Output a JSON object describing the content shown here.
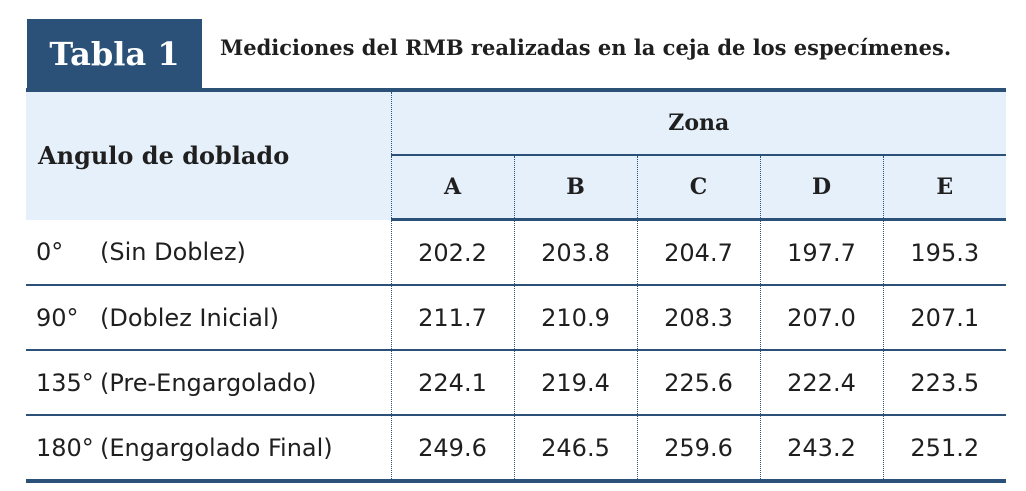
{
  "tag": "Tabla 1",
  "caption": "Mediciones del RMB realizadas en la ceja de los especímenes.",
  "header": {
    "row_label": "Angulo de doblado",
    "group": "Zona",
    "zones": [
      "A",
      "B",
      "C",
      "D",
      "E"
    ]
  },
  "rows": [
    {
      "deg": "0°",
      "name": "(Sin Doblez)",
      "values": [
        "202.2",
        "203.8",
        "204.7",
        "197.7",
        "195.3"
      ]
    },
    {
      "deg": "90°",
      "name": "(Doblez Inicial)",
      "values": [
        "211.7",
        "210.9",
        "208.3",
        "207.0",
        "207.1"
      ]
    },
    {
      "deg": "135°",
      "name": "(Pre-Engargolado)",
      "values": [
        "224.1",
        "219.4",
        "225.6",
        "222.4",
        "223.5"
      ]
    },
    {
      "deg": "180°",
      "name": "(Engargolado Final)",
      "values": [
        "249.6",
        "246.5",
        "259.6",
        "243.2",
        "251.2"
      ]
    }
  ],
  "colors": {
    "accent": "#2b5178",
    "header_bg": "#e6f0fa"
  }
}
